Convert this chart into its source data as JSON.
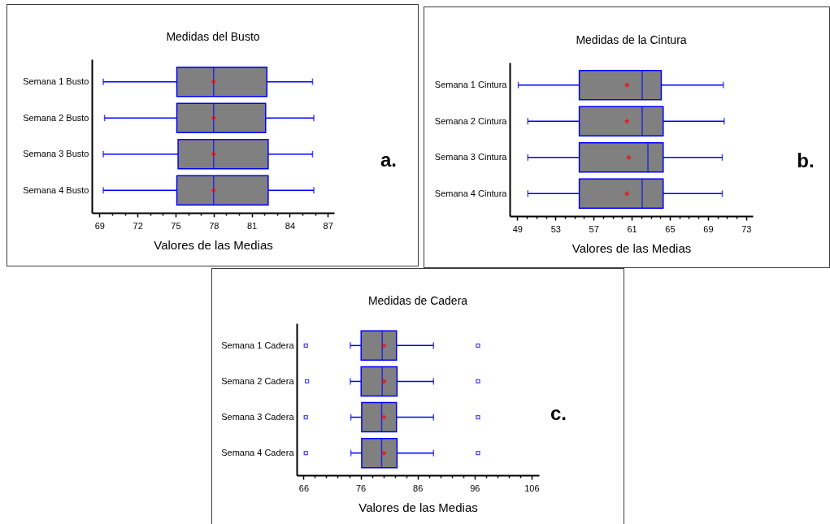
{
  "chart_data": [
    {
      "type": "box",
      "orientation": "horizontal",
      "title": "Medidas del Busto",
      "xlabel": "Valores de las Medias",
      "color": "#808080",
      "categories": [
        "Semana 1 Busto",
        "Semana 2 Busto",
        "Semana 3 Busto",
        "Semana 4 Busto"
      ],
      "boxes": [
        {
          "low": 69.3,
          "q1": 75.1,
          "median": 78.0,
          "q3": 82.2,
          "high": 85.8,
          "mean": 78.0
        },
        {
          "low": 69.4,
          "q1": 75.1,
          "median": 78.0,
          "q3": 82.1,
          "high": 85.9,
          "mean": 78.0
        },
        {
          "low": 69.3,
          "q1": 75.2,
          "median": 78.0,
          "q3": 82.3,
          "high": 85.8,
          "mean": 78.0
        },
        {
          "low": 69.3,
          "q1": 75.1,
          "median": 78.0,
          "q3": 82.3,
          "high": 85.9,
          "mean": 78.0
        }
      ],
      "xlim": [
        68.4,
        87.5
      ],
      "xticks": [
        69,
        {
          "value": 70,
          "label": null
        },
        {
          "value": 71,
          "label": null
        },
        72,
        {
          "value": 73,
          "label": null
        },
        {
          "value": 74,
          "label": null
        },
        75,
        {
          "value": 76,
          "label": null
        },
        {
          "value": 77,
          "label": null
        },
        78,
        {
          "value": 79,
          "label": null
        },
        {
          "value": 80,
          "label": null
        },
        81,
        {
          "value": 82,
          "label": null
        },
        {
          "value": 83,
          "label": null
        },
        84,
        {
          "value": 85,
          "label": null
        },
        {
          "value": 86,
          "label": null
        },
        87
      ],
      "annotations": [
        "a."
      ]
    },
    {
      "type": "box",
      "orientation": "horizontal",
      "title": "Medidas de la Cintura",
      "xlabel": "Valores de las Medias",
      "color": "#808080",
      "categories": [
        "Semana 1 Cintura",
        "Semana 2 Cintura",
        "Semana 3 Cintura",
        "Semana 4 Cintura"
      ],
      "boxes": [
        {
          "low": 49.1,
          "q1": 55.5,
          "median": 62.1,
          "q3": 64.1,
          "high": 70.6,
          "mean": 60.5
        },
        {
          "low": 50.1,
          "q1": 55.5,
          "median": 62.1,
          "q3": 64.3,
          "high": 70.7,
          "mean": 60.5
        },
        {
          "low": 50.1,
          "q1": 55.5,
          "median": 62.7,
          "q3": 64.3,
          "high": 70.5,
          "mean": 60.7
        },
        {
          "low": 50.1,
          "q1": 55.5,
          "median": 62.1,
          "q3": 64.3,
          "high": 70.5,
          "mean": 60.5
        }
      ],
      "xlim": [
        48.2,
        73.7
      ],
      "xticks": [
        49,
        {
          "value": 50,
          "label": null
        },
        {
          "value": 51,
          "label": null
        },
        {
          "value": 52,
          "label": null
        },
        53,
        {
          "value": 54,
          "label": null
        },
        {
          "value": 55,
          "label": null
        },
        {
          "value": 56,
          "label": null
        },
        57,
        {
          "value": 58,
          "label": null
        },
        {
          "value": 59,
          "label": null
        },
        {
          "value": 60,
          "label": null
        },
        61,
        {
          "value": 62,
          "label": null
        },
        {
          "value": 63,
          "label": null
        },
        {
          "value": 64,
          "label": null
        },
        65,
        {
          "value": 66,
          "label": null
        },
        {
          "value": 67,
          "label": null
        },
        {
          "value": 68,
          "label": null
        },
        69,
        {
          "value": 70,
          "label": null
        },
        {
          "value": 71,
          "label": null
        },
        {
          "value": 72,
          "label": null
        },
        73
      ],
      "annotations": [
        "b."
      ]
    },
    {
      "type": "box",
      "orientation": "horizontal",
      "title": "Medidas de Cadera",
      "xlabel": "Valores de las Medias",
      "color": "#808080",
      "categories": [
        "Semana 1 Cadera",
        "Semana 2 Cadera",
        "Semana 3 Cadera",
        "Semana 4 Cadera"
      ],
      "boxes": [
        {
          "low": 74.2,
          "q1": 76.1,
          "median": 79.8,
          "q3": 82.3,
          "high": 88.8,
          "mean": 80.1,
          "outliers": [
            66.4,
            96.6
          ]
        },
        {
          "low": 74.2,
          "q1": 76.1,
          "median": 79.8,
          "q3": 82.4,
          "high": 88.8,
          "mean": 80.1,
          "outliers": [
            66.6,
            96.6
          ]
        },
        {
          "low": 74.3,
          "q1": 76.2,
          "median": 79.7,
          "q3": 82.3,
          "high": 88.8,
          "mean": 80.1,
          "outliers": [
            66.4,
            96.6
          ]
        },
        {
          "low": 74.3,
          "q1": 76.2,
          "median": 79.7,
          "q3": 82.4,
          "high": 88.8,
          "mean": 80.1,
          "outliers": [
            66.4,
            96.6
          ]
        }
      ],
      "xlim": [
        64.8,
        107.3
      ],
      "xticks": [
        66,
        {
          "value": 68,
          "label": null
        },
        {
          "value": 70,
          "label": null
        },
        {
          "value": 72,
          "label": null
        },
        {
          "value": 74,
          "label": null
        },
        76,
        {
          "value": 78,
          "label": null
        },
        {
          "value": 80,
          "label": null
        },
        {
          "value": 82,
          "label": null
        },
        {
          "value": 84,
          "label": null
        },
        86,
        {
          "value": 88,
          "label": null
        },
        {
          "value": 90,
          "label": null
        },
        {
          "value": 92,
          "label": null
        },
        {
          "value": 94,
          "label": null
        },
        96,
        {
          "value": 98,
          "label": null
        },
        {
          "value": 100,
          "label": null
        },
        {
          "value": 102,
          "label": null
        },
        {
          "value": 104,
          "label": null
        },
        106
      ],
      "annotations": [
        "c."
      ]
    }
  ]
}
